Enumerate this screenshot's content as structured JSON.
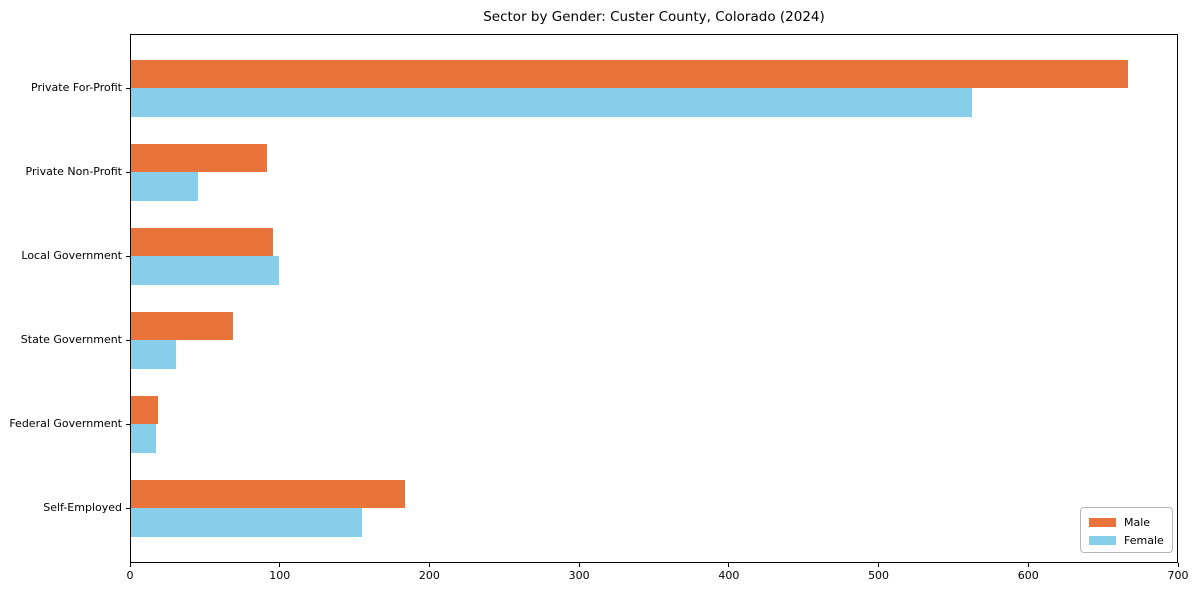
{
  "chart_data": {
    "type": "bar",
    "orientation": "horizontal",
    "title": "Sector by Gender: Custer County, Colorado (2024)",
    "categories": [
      "Private For-Profit",
      "Private Non-Profit",
      "Local Government",
      "State Government",
      "Federal Government",
      "Self-Employed"
    ],
    "series": [
      {
        "name": "Male",
        "color": "#E8743B",
        "values": [
          666,
          91,
          95,
          68,
          18,
          183
        ]
      },
      {
        "name": "Female",
        "color": "#87CEEB",
        "values": [
          562,
          45,
          99,
          30,
          17,
          154
        ]
      }
    ],
    "xlabel": "",
    "ylabel": "",
    "xlim": [
      0,
      700
    ],
    "xticks": [
      0,
      100,
      200,
      300,
      400,
      500,
      600,
      700
    ],
    "grid": false,
    "legend_position": "lower right",
    "colors": {
      "background": "#ffffff",
      "spine": "#000000",
      "text": "#000000",
      "legend_border": "#b7b7b7"
    }
  }
}
